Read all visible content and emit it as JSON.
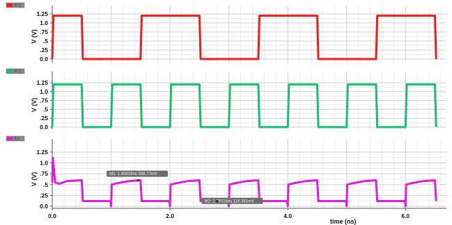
{
  "chart_data": {
    "type": "line",
    "x_axis": {
      "label": "time (ns)",
      "range": [
        0,
        6.6
      ],
      "ticks": [
        0,
        2,
        4,
        6
      ],
      "tick_labels": [
        "0.0",
        "2.0",
        "4.0",
        "6.0"
      ]
    },
    "panels": [
      {
        "legend": "/F:1",
        "color": "#ee1c1c",
        "ylabel": "V (V)",
        "ylim": [
          0,
          1.25
        ],
        "ytick_labels": [
          "0.0",
          ".25",
          ".5",
          ".75",
          "1.0",
          "1.25"
        ],
        "series": {
          "x": [
            0.0,
            0.02,
            0.5,
            0.52,
            1.5,
            1.52,
            2.5,
            2.52,
            3.5,
            3.52,
            4.5,
            4.52,
            5.5,
            5.52,
            6.5,
            6.52
          ],
          "y": [
            0.0,
            1.2,
            1.2,
            0.0,
            0.0,
            1.2,
            1.2,
            0.0,
            0.0,
            1.2,
            1.2,
            0.0,
            0.0,
            1.2,
            1.2,
            0.0
          ]
        }
      },
      {
        "legend": "/F:2",
        "color": "#18bf72",
        "ylabel": "V (V)",
        "ylim": [
          0,
          1.25
        ],
        "ytick_labels": [
          "0.0",
          ".25",
          ".5",
          ".75",
          "1.0",
          "1.25"
        ],
        "series": {
          "x": [
            0.0,
            0.02,
            0.5,
            0.52,
            1.0,
            1.02,
            1.5,
            1.52,
            2.0,
            2.02,
            2.5,
            2.52,
            3.0,
            3.02,
            3.5,
            3.52,
            4.0,
            4.02,
            4.5,
            4.52,
            5.0,
            5.02,
            5.5,
            5.52,
            6.0,
            6.02,
            6.5,
            6.52
          ],
          "y": [
            0.0,
            1.2,
            1.2,
            0.0,
            0.0,
            1.2,
            1.2,
            0.0,
            0.0,
            1.2,
            1.2,
            0.0,
            0.0,
            1.2,
            1.2,
            0.0,
            0.0,
            1.2,
            1.2,
            0.0,
            0.0,
            1.2,
            1.2,
            0.0,
            0.0,
            1.2,
            1.2,
            0.0
          ]
        }
      },
      {
        "legend": "/L1",
        "color": "#e01ce0",
        "ylabel": "V (V)",
        "ylim": [
          0,
          1.25
        ],
        "ytick_labels": [
          "0.0",
          ".25",
          ".5",
          ".75",
          "1.0",
          "1.25"
        ],
        "series": {
          "x": [
            0.0,
            0.01,
            0.05,
            0.12,
            0.25,
            0.5,
            0.52,
            0.99,
            1.0,
            1.01,
            1.1,
            1.3,
            1.5,
            1.52,
            1.99,
            2.0,
            2.01,
            2.1,
            2.3,
            2.5,
            2.52,
            2.99,
            3.0,
            3.01,
            3.1,
            3.3,
            3.5,
            3.52,
            3.99,
            4.0,
            4.01,
            4.1,
            4.3,
            4.5,
            4.52,
            4.99,
            5.0,
            5.01,
            5.1,
            5.3,
            5.5,
            5.52,
            5.99,
            6.0,
            6.01,
            6.1,
            6.3,
            6.5,
            6.52
          ],
          "y": [
            0.55,
            1.12,
            0.55,
            0.52,
            0.58,
            0.6,
            0.12,
            0.12,
            0.0,
            0.5,
            0.53,
            0.58,
            0.6,
            0.12,
            0.12,
            0.0,
            0.5,
            0.53,
            0.58,
            0.6,
            0.12,
            0.12,
            0.0,
            0.5,
            0.53,
            0.58,
            0.6,
            0.12,
            0.12,
            0.0,
            0.5,
            0.53,
            0.58,
            0.6,
            0.12,
            0.12,
            0.0,
            0.5,
            0.53,
            0.58,
            0.6,
            0.12,
            0.12,
            0.0,
            0.5,
            0.53,
            0.58,
            0.6,
            0.12
          ]
        },
        "markers": [
          {
            "label": "M1: 1.45618ns 598.77mV",
            "x": 1.456,
            "y": 0.599
          },
          {
            "label": "M2: 2.79724ns 116.361mV",
            "x": 2.797,
            "y": 0.116
          }
        ]
      }
    ]
  }
}
